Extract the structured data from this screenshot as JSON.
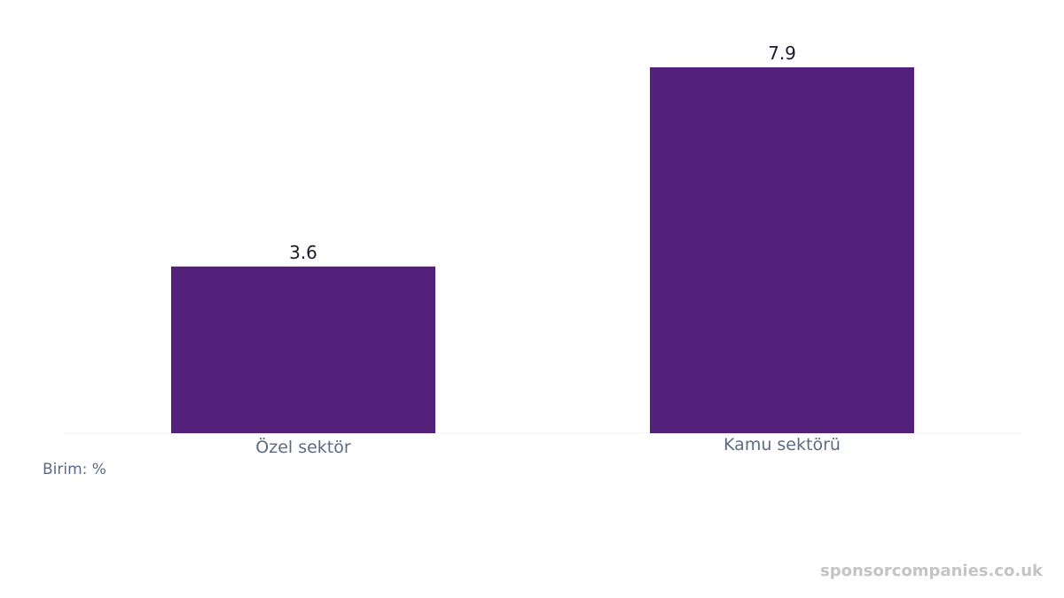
{
  "chart_data": {
    "type": "bar",
    "categories": [
      "Özel sektör",
      "Kamu sektörü"
    ],
    "values": [
      3.6,
      7.9
    ],
    "value_labels": [
      "3.6",
      "7.9"
    ],
    "ylim": [
      0,
      7.9
    ],
    "bar_color": "#53217a",
    "grid": false,
    "title": "",
    "xlabel": "",
    "ylabel": ""
  },
  "unit_note": "Birim: %",
  "watermark": "sponsorcompanies.co.uk"
}
